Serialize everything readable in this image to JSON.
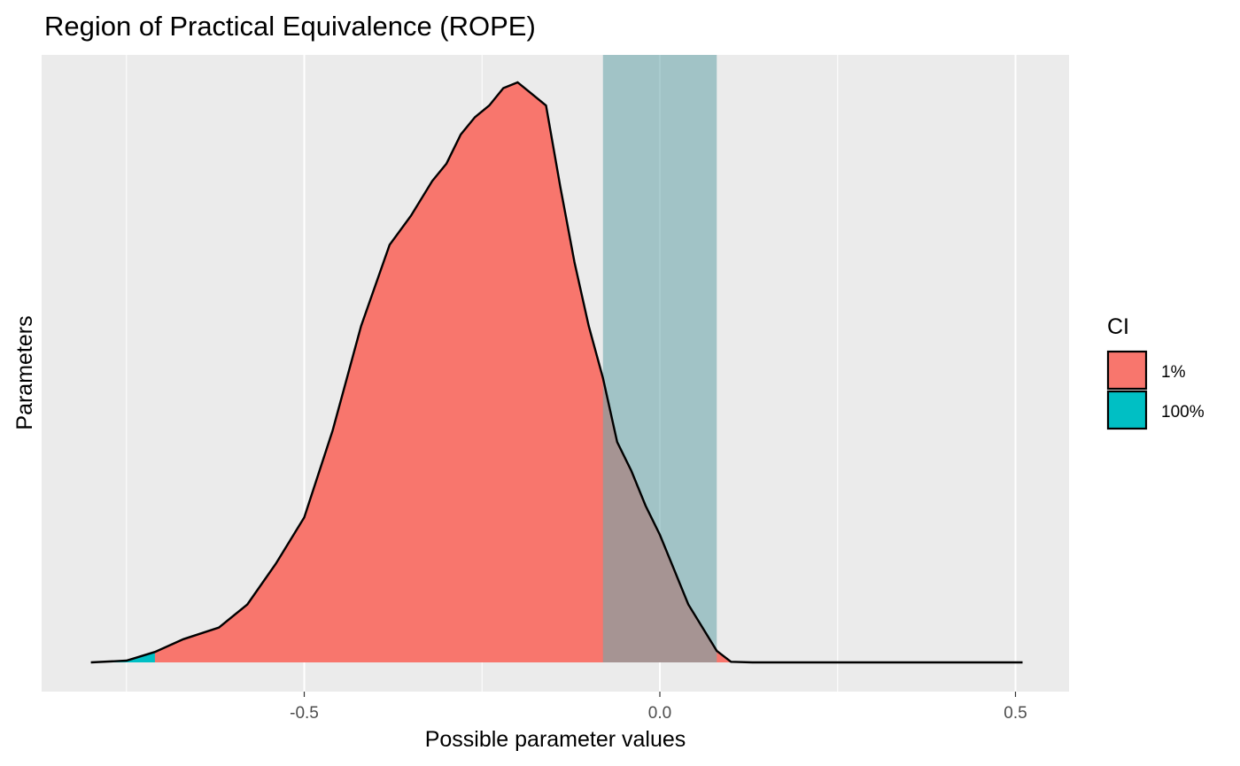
{
  "chart_data": {
    "type": "area",
    "title": "Region of Practical Equivalence (ROPE)",
    "xlabel": "Possible parameter values",
    "ylabel": "Parameters",
    "xlim": [
      -0.75,
      0.5
    ],
    "x_ticks": [
      -0.5,
      0.0,
      0.5
    ],
    "x_tick_labels": [
      "-0.5",
      "0.0",
      "0.5"
    ],
    "ylim": [
      0,
      1.0
    ],
    "grid": true,
    "legend_position": "right",
    "legend": {
      "title": "CI",
      "entries": [
        {
          "label": "1%",
          "color": "#f8766d"
        },
        {
          "label": "100%",
          "color": "#00bfc4"
        }
      ]
    },
    "rope": {
      "low": -0.08,
      "high": 0.08,
      "color": "#6fa8ad"
    },
    "ci_regions": [
      {
        "label": "1%",
        "from": -0.71,
        "to": 0.43
      },
      {
        "label": "100%",
        "from": -0.8,
        "to": 0.51
      }
    ],
    "density": {
      "x": [
        -0.8,
        -0.75,
        -0.71,
        -0.67,
        -0.62,
        -0.58,
        -0.54,
        -0.5,
        -0.46,
        -0.42,
        -0.38,
        -0.35,
        -0.32,
        -0.3,
        -0.28,
        -0.26,
        -0.24,
        -0.22,
        -0.2,
        -0.18,
        -0.16,
        -0.14,
        -0.12,
        -0.1,
        -0.08,
        -0.06,
        -0.04,
        -0.02,
        0.0,
        0.02,
        0.04,
        0.06,
        0.08,
        0.1,
        0.13,
        0.16,
        0.2,
        0.24,
        0.28,
        0.32,
        0.36,
        0.4,
        0.44,
        0.48,
        0.51
      ],
      "y": [
        0.0,
        0.003,
        0.018,
        0.04,
        0.06,
        0.1,
        0.17,
        0.25,
        0.4,
        0.58,
        0.72,
        0.77,
        0.83,
        0.86,
        0.91,
        0.94,
        0.96,
        0.99,
        1.0,
        0.98,
        0.96,
        0.82,
        0.69,
        0.58,
        0.49,
        0.38,
        0.33,
        0.27,
        0.22,
        0.16,
        0.1,
        0.06,
        0.02,
        0.001,
        0.0,
        0.0,
        0.0,
        0.0,
        0.0,
        0.0,
        0.0,
        0.0,
        0.0,
        0.0,
        0.0
      ]
    }
  }
}
